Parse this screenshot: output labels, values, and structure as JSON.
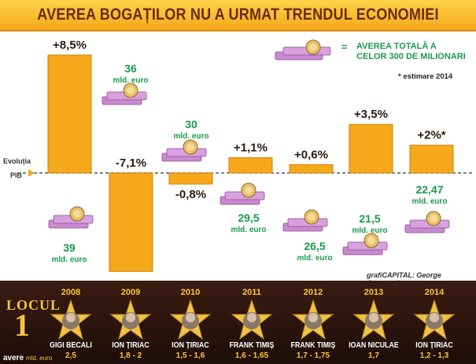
{
  "title": "AVEREA BOGAȚILOR NU A URMAT TRENDUL ECONOMIEI",
  "legend": {
    "symbol": "=",
    "text": "AVEREA TOTALĂ A CELOR 300 DE MILIONARI"
  },
  "note": "* estimare 2014",
  "axis_label_line1": "Evoluția",
  "axis_label_line2": "PIB",
  "credit": "grafiCAPITAL: George Constantinescu",
  "colors": {
    "bar": "#f5a81a",
    "bar_edge": "#c98209",
    "wealth_text": "#1b9a4a",
    "gdp_text": "#2b1a12",
    "title_bg": "#ffc93a",
    "title_text": "#6b2c1a",
    "bottom_bg": "#2a140c",
    "star": "#f2c246"
  },
  "chart_data": {
    "type": "bar",
    "categories": [
      "2008",
      "2009",
      "2010",
      "2011",
      "2012",
      "2013",
      "2014"
    ],
    "series": [
      {
        "values": [
          8.5,
          -7.1,
          -0.8,
          1.1,
          0.6,
          3.5,
          2
        ]
      }
    ],
    "bar_labels": [
      "+8,5%",
      "-7,1%",
      "-0,8%",
      "+1,1%",
      "+0,6%",
      "+3,5%",
      "+2%*"
    ],
    "wealth_values": [
      "39",
      "36",
      "30",
      "29,5",
      "26,5",
      "21,5",
      "22,47"
    ],
    "wealth_unit": "mld. euro",
    "ylim": [
      -9,
      9.5
    ]
  },
  "winners": {
    "heading_line1": "LOCUL",
    "heading_line2": "1",
    "footer_label": "avere",
    "footer_unit": "mld. euro",
    "items": [
      {
        "year": "2008",
        "name": "GIGI BECALI",
        "value": "2,5"
      },
      {
        "year": "2009",
        "name": "ION ȚIRIAC",
        "value": "1,8 - 2"
      },
      {
        "year": "2010",
        "name": "ION ȚIRIAC",
        "value": "1,5 - 1,6"
      },
      {
        "year": "2011",
        "name": "FRANK TIMIȘ",
        "value": "1,6 - 1,65"
      },
      {
        "year": "2012",
        "name": "FRANK TIMIȘ",
        "value": "1,7 - 1,75"
      },
      {
        "year": "2013",
        "name": "IOAN NICULAE",
        "value": "1,7"
      },
      {
        "year": "2014",
        "name": "ION ȚIRIAC",
        "value": "1,2 - 1,3"
      }
    ]
  }
}
